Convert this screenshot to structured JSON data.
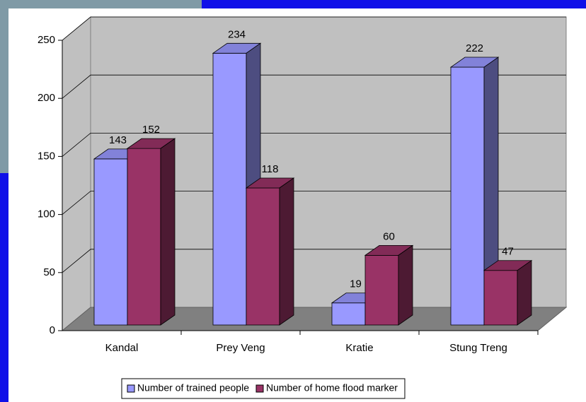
{
  "chart_data": {
    "type": "bar",
    "categories": [
      "Kandal",
      "Prey Veng",
      "Kratie",
      "Stung Treng"
    ],
    "series": [
      {
        "name": "Number of trained people",
        "color": "#9999ff",
        "values": [
          143,
          234,
          19,
          222
        ]
      },
      {
        "name": "Number of home flood marker",
        "color": "#993366",
        "values": [
          152,
          118,
          60,
          47
        ]
      }
    ],
    "ylim": [
      0,
      250
    ],
    "yticks": [
      0,
      50,
      100,
      150,
      200,
      250
    ],
    "grid": true,
    "legend": "bottom"
  }
}
